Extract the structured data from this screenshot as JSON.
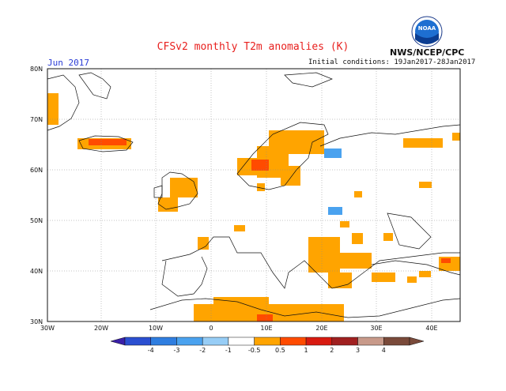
{
  "header": {
    "title": "CFSv2 monthly T2m anomalies (K)",
    "month": "Jun 2017",
    "initial_conditions": "Initial conditions: 19Jan2017-28Jan2017",
    "agency": "NWS/NCEP/CPC",
    "logo_text": "NOAA"
  },
  "axes": {
    "lat_labels": [
      "30N",
      "40N",
      "50N",
      "60N",
      "70N",
      "80N"
    ],
    "lon_labels": [
      "30W",
      "20W",
      "10W",
      "0",
      "10E",
      "20E",
      "30E",
      "40E"
    ]
  },
  "colorbar": {
    "labels": [
      "-4",
      "-3",
      "-2",
      "-1",
      "-0.5",
      "0.5",
      "1",
      "2",
      "3",
      "4"
    ],
    "colors": [
      "#3a1fa8",
      "#2b4fd1",
      "#2f7ee0",
      "#4aa2ef",
      "#97cdf6",
      "#ffffff",
      "#ffa400",
      "#ff4b00",
      "#d81a10",
      "#a02020",
      "#c89a8a",
      "#7a4a3a"
    ]
  },
  "colors": {
    "warm": "#ffa400",
    "hot": "#ff4b00",
    "cool": "#4aa2ef"
  }
}
